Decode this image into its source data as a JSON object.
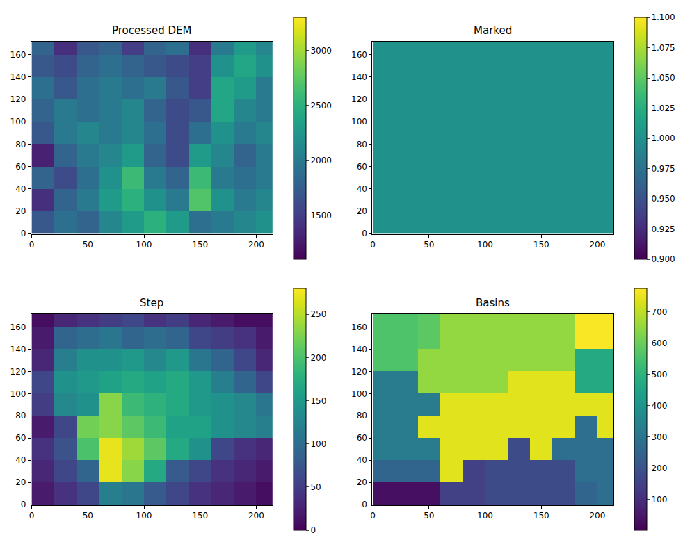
{
  "chart_data": [
    {
      "type": "heatmap",
      "title": "Processed DEM",
      "color": "viridis",
      "x": [
        10,
        30,
        50,
        70,
        90,
        110,
        130,
        150,
        170,
        190,
        210
      ],
      "y": [
        10,
        30,
        50,
        70,
        90,
        110,
        130,
        150,
        170
      ],
      "cells": [
        [
          1700,
          1900,
          1800,
          2100,
          2300,
          2500,
          2300,
          1900,
          2000,
          2100,
          2200
        ],
        [
          1400,
          1800,
          2000,
          2300,
          2500,
          2200,
          2000,
          2700,
          2200,
          2000,
          2100
        ],
        [
          1800,
          1600,
          1900,
          2200,
          2600,
          2000,
          1800,
          2600,
          2000,
          1900,
          2000
        ],
        [
          1300,
          1800,
          2000,
          2100,
          2300,
          1800,
          1600,
          2300,
          2100,
          1800,
          2000
        ],
        [
          1700,
          2000,
          2100,
          2000,
          2100,
          1900,
          1600,
          1900,
          2200,
          2000,
          2100
        ],
        [
          1800,
          2000,
          1900,
          2000,
          2100,
          1800,
          1600,
          1700,
          2400,
          2100,
          2000
        ],
        [
          1900,
          1700,
          1900,
          2000,
          1900,
          2000,
          1700,
          1500,
          2400,
          2300,
          2000
        ],
        [
          1700,
          1600,
          1800,
          1900,
          1800,
          1700,
          1600,
          1500,
          2200,
          2400,
          2200
        ],
        [
          1800,
          1400,
          1700,
          1800,
          1500,
          1800,
          1900,
          1400,
          2000,
          2300,
          2100
        ]
      ],
      "xlim": [
        -0.5,
        214.5
      ],
      "ylim": [
        -0.5,
        171.5
      ],
      "xticks": [
        0,
        50,
        100,
        150,
        200
      ],
      "yticks": [
        0,
        20,
        40,
        60,
        80,
        100,
        120,
        140,
        160
      ],
      "colorbar_range": [
        1100,
        3300
      ],
      "colorbar_ticks": [
        1500,
        2000,
        2500,
        3000
      ]
    },
    {
      "type": "heatmap",
      "title": "Marked",
      "color": "viridis",
      "x": [
        10,
        30,
        50,
        70,
        90,
        110,
        130,
        150,
        170,
        190,
        210
      ],
      "y": [
        10,
        30,
        50,
        70,
        90,
        110,
        130,
        150,
        170
      ],
      "cells": [
        [
          1,
          1,
          1,
          1,
          1,
          1,
          1,
          1,
          1,
          1,
          1
        ],
        [
          1,
          1,
          1,
          1,
          1,
          1,
          1,
          1,
          1,
          1,
          1
        ],
        [
          1,
          1,
          1,
          1,
          1,
          1,
          1,
          1,
          1,
          1,
          1
        ],
        [
          1,
          1,
          1,
          1,
          1,
          1,
          1,
          1,
          1,
          1,
          1
        ],
        [
          1,
          1,
          1,
          1,
          1,
          1,
          1,
          1,
          1,
          1,
          1
        ],
        [
          1,
          1,
          1,
          1,
          1,
          1,
          1,
          1,
          1,
          1,
          1
        ],
        [
          1,
          1,
          1,
          1,
          1,
          1,
          1,
          1,
          1,
          1,
          1
        ],
        [
          1,
          1,
          1,
          1,
          1,
          1,
          1,
          1,
          1,
          1,
          1
        ],
        [
          1,
          1,
          1,
          1,
          1,
          1,
          1,
          1,
          1,
          1,
          1
        ]
      ],
      "xlim": [
        -0.5,
        214.5
      ],
      "ylim": [
        -0.5,
        171.5
      ],
      "xticks": [
        0,
        50,
        100,
        150,
        200
      ],
      "yticks": [
        0,
        20,
        40,
        60,
        80,
        100,
        120,
        140,
        160
      ],
      "colorbar_range": [
        0.9,
        1.1
      ],
      "colorbar_ticks": [
        {
          "value": 0.9,
          "label": "0.900"
        },
        {
          "value": 0.925,
          "label": "0.925"
        },
        {
          "value": 0.95,
          "label": "0.950"
        },
        {
          "value": 0.975,
          "label": "0.975"
        },
        {
          "value": 1.0,
          "label": "1.000"
        },
        {
          "value": 1.025,
          "label": "1.025"
        },
        {
          "value": 1.05,
          "label": "1.050"
        },
        {
          "value": 1.075,
          "label": "1.075"
        },
        {
          "value": 1.1,
          "label": "1.100"
        }
      ]
    },
    {
      "type": "heatmap",
      "title": "Step",
      "color": "viridis",
      "x": [
        10,
        30,
        50,
        70,
        90,
        110,
        130,
        150,
        170,
        190,
        210
      ],
      "y": [
        10,
        30,
        50,
        70,
        90,
        110,
        130,
        150,
        170
      ],
      "cells": [
        [
          20,
          40,
          60,
          120,
          110,
          80,
          60,
          40,
          30,
          20,
          10
        ],
        [
          30,
          60,
          90,
          270,
          230,
          170,
          80,
          60,
          40,
          30,
          20
        ],
        [
          40,
          70,
          200,
          270,
          240,
          210,
          170,
          140,
          60,
          40,
          30
        ],
        [
          20,
          60,
          220,
          230,
          210,
          190,
          160,
          160,
          140,
          130,
          120
        ],
        [
          50,
          130,
          140,
          230,
          190,
          180,
          170,
          150,
          140,
          130,
          110
        ],
        [
          60,
          140,
          150,
          160,
          170,
          160,
          170,
          150,
          120,
          90,
          60
        ],
        [
          30,
          120,
          140,
          140,
          150,
          130,
          150,
          110,
          90,
          60,
          30
        ],
        [
          20,
          90,
          100,
          110,
          90,
          100,
          90,
          60,
          50,
          40,
          20
        ],
        [
          10,
          30,
          40,
          50,
          60,
          40,
          50,
          30,
          20,
          10,
          10
        ]
      ],
      "xlim": [
        -0.5,
        214.5
      ],
      "ylim": [
        -0.5,
        171.5
      ],
      "xticks": [
        0,
        50,
        100,
        150,
        200
      ],
      "yticks": [
        0,
        20,
        40,
        60,
        80,
        100,
        120,
        140,
        160
      ],
      "colorbar_range": [
        0,
        280
      ],
      "colorbar_ticks": [
        0,
        50,
        100,
        150,
        200,
        250
      ]
    },
    {
      "type": "heatmap",
      "title": "Basins",
      "color": "viridis",
      "x": [
        10,
        30,
        50,
        70,
        90,
        110,
        130,
        150,
        170,
        190,
        210
      ],
      "y": [
        10,
        30,
        50,
        70,
        90,
        110,
        130,
        150,
        170
      ],
      "cells": [
        [
          30,
          30,
          30,
          150,
          150,
          180,
          180,
          180,
          180,
          250,
          280
        ],
        [
          250,
          250,
          250,
          740,
          150,
          180,
          180,
          180,
          180,
          280,
          280
        ],
        [
          320,
          320,
          320,
          740,
          740,
          740,
          180,
          740,
          280,
          280,
          280
        ],
        [
          320,
          320,
          740,
          740,
          740,
          740,
          740,
          740,
          740,
          280,
          740
        ],
        [
          320,
          320,
          320,
          740,
          740,
          740,
          740,
          740,
          740,
          740,
          740
        ],
        [
          320,
          320,
          650,
          650,
          650,
          650,
          740,
          740,
          740,
          470,
          470
        ],
        [
          560,
          560,
          650,
          650,
          650,
          650,
          650,
          650,
          650,
          470,
          470
        ],
        [
          560,
          560,
          580,
          650,
          650,
          650,
          650,
          650,
          650,
          770,
          770
        ],
        [
          560,
          560,
          580,
          650,
          650,
          650,
          650,
          650,
          650,
          770,
          770
        ]
      ],
      "xlim": [
        -0.5,
        214.5
      ],
      "ylim": [
        -0.5,
        171.5
      ],
      "xticks": [
        0,
        50,
        100,
        150,
        200
      ],
      "yticks": [
        0,
        20,
        40,
        60,
        80,
        100,
        120,
        140,
        160
      ],
      "colorbar_range": [
        1,
        775
      ],
      "colorbar_ticks": [
        100,
        200,
        300,
        400,
        500,
        600,
        700
      ]
    }
  ]
}
